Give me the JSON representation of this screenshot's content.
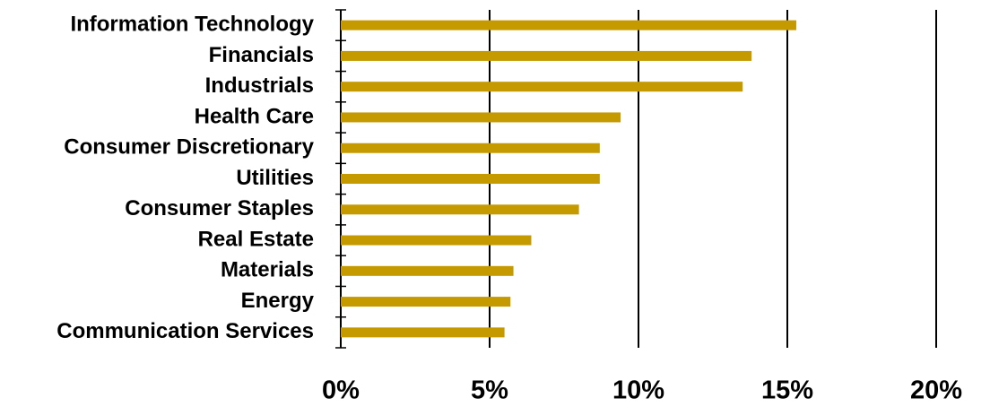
{
  "chart_data": {
    "type": "barh",
    "categories": [
      "Information Technology",
      "Financials",
      "Industrials",
      "Health Care",
      "Consumer Discretionary",
      "Utilities",
      "Consumer Staples",
      "Real Estate",
      "Materials",
      "Energy",
      "Communication Services"
    ],
    "values": [
      15.3,
      13.8,
      13.5,
      9.4,
      8.7,
      8.7,
      8.0,
      6.4,
      5.8,
      5.7,
      5.5
    ],
    "color": "#c49a00",
    "xlim": [
      0,
      20
    ],
    "xticks": [
      {
        "value": 0,
        "label": "0%"
      },
      {
        "value": 5,
        "label": "5%"
      },
      {
        "value": 10,
        "label": "10%"
      },
      {
        "value": 15,
        "label": "15%"
      },
      {
        "value": 20,
        "label": "20%"
      }
    ],
    "grid": true
  }
}
